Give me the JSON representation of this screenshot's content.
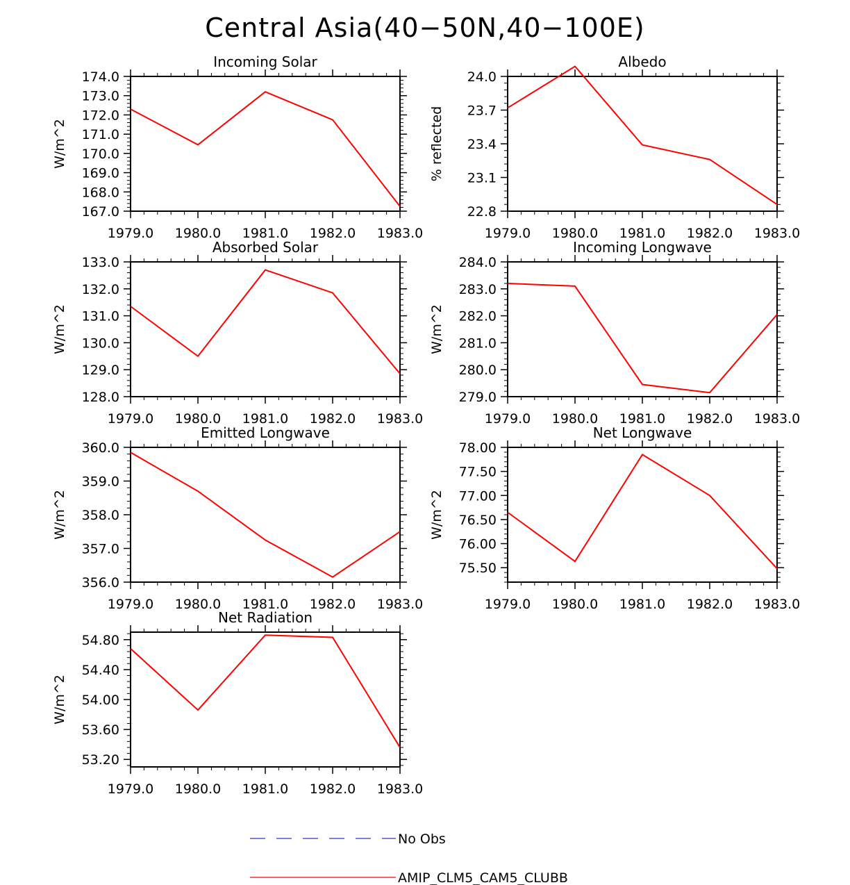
{
  "title": "Central Asia(40−50N,40−100E)",
  "chart_data": [
    {
      "type": "line",
      "title": "Incoming Solar",
      "xlabel": "",
      "ylabel": "W/m^2",
      "xlim": [
        1979,
        1983
      ],
      "ylim": [
        167,
        174
      ],
      "x_ticks": [
        "1979.0",
        "1980.0",
        "1981.0",
        "1982.0",
        "1983.0"
      ],
      "y_ticks": [
        "167.0",
        "168.0",
        "169.0",
        "170.0",
        "171.0",
        "172.0",
        "173.0",
        "174.0"
      ],
      "x": [
        1979,
        1980,
        1981,
        1982,
        1983
      ],
      "series": [
        {
          "name": "AMIP_CLM5_CAM5_CLUBB",
          "color": "#ff0000",
          "values": [
            172.3,
            170.45,
            173.2,
            171.75,
            167.25
          ]
        }
      ]
    },
    {
      "type": "line",
      "title": "Albedo",
      "xlabel": "",
      "ylabel": "% reflected",
      "xlim": [
        1979,
        1983
      ],
      "ylim": [
        22.8,
        24.0
      ],
      "x_ticks": [
        "1979.0",
        "1980.0",
        "1981.0",
        "1982.0",
        "1983.0"
      ],
      "y_ticks": [
        "22.8",
        "23.1",
        "23.4",
        "23.7",
        "24.0"
      ],
      "x": [
        1979,
        1980,
        1981,
        1982,
        1983
      ],
      "series": [
        {
          "name": "AMIP_CLM5_CAM5_CLUBB",
          "color": "#ff0000",
          "values": [
            23.72,
            24.09,
            23.39,
            23.26,
            22.86
          ]
        }
      ]
    },
    {
      "type": "line",
      "title": "Absorbed Solar",
      "xlabel": "",
      "ylabel": "W/m^2",
      "xlim": [
        1979,
        1983
      ],
      "ylim": [
        128,
        133
      ],
      "x_ticks": [
        "1979.0",
        "1980.0",
        "1981.0",
        "1982.0",
        "1983.0"
      ],
      "y_ticks": [
        "128.0",
        "129.0",
        "130.0",
        "131.0",
        "132.0",
        "133.0"
      ],
      "x": [
        1979,
        1980,
        1981,
        1982,
        1983
      ],
      "series": [
        {
          "name": "AMIP_CLM5_CAM5_CLUBB",
          "color": "#ff0000",
          "values": [
            131.35,
            129.5,
            132.7,
            131.85,
            128.85
          ]
        }
      ]
    },
    {
      "type": "line",
      "title": "Incoming Longwave",
      "xlabel": "",
      "ylabel": "W/m^2",
      "xlim": [
        1979,
        1983
      ],
      "ylim": [
        279,
        284
      ],
      "x_ticks": [
        "1979.0",
        "1980.0",
        "1981.0",
        "1982.0",
        "1983.0"
      ],
      "y_ticks": [
        "279.0",
        "280.0",
        "281.0",
        "282.0",
        "283.0",
        "284.0"
      ],
      "x": [
        1979,
        1980,
        1981,
        1982,
        1983
      ],
      "series": [
        {
          "name": "AMIP_CLM5_CAM5_CLUBB",
          "color": "#ff0000",
          "values": [
            283.2,
            283.1,
            279.45,
            279.15,
            282.05
          ]
        }
      ]
    },
    {
      "type": "line",
      "title": "Emitted Longwave",
      "xlabel": "",
      "ylabel": "W/m^2",
      "xlim": [
        1979,
        1983
      ],
      "ylim": [
        356,
        360
      ],
      "x_ticks": [
        "1979.0",
        "1980.0",
        "1981.0",
        "1982.0",
        "1983.0"
      ],
      "y_ticks": [
        "356.0",
        "357.0",
        "358.0",
        "359.0",
        "360.0"
      ],
      "x": [
        1979,
        1980,
        1981,
        1982,
        1983
      ],
      "series": [
        {
          "name": "AMIP_CLM5_CAM5_CLUBB",
          "color": "#ff0000",
          "values": [
            359.85,
            358.7,
            357.25,
            356.15,
            357.5
          ]
        }
      ]
    },
    {
      "type": "line",
      "title": "Net Longwave",
      "xlabel": "",
      "ylabel": "W/m^2",
      "xlim": [
        1979,
        1983
      ],
      "ylim": [
        75.2,
        78.0
      ],
      "x_ticks": [
        "1979.0",
        "1980.0",
        "1981.0",
        "1982.0",
        "1983.0"
      ],
      "y_ticks": [
        "75.50",
        "76.00",
        "76.50",
        "77.00",
        "77.50",
        "78.00"
      ],
      "x": [
        1979,
        1980,
        1981,
        1982,
        1983
      ],
      "series": [
        {
          "name": "AMIP_CLM5_CAM5_CLUBB",
          "color": "#ff0000",
          "values": [
            76.65,
            75.63,
            77.85,
            77.0,
            75.48
          ]
        }
      ]
    },
    {
      "type": "line",
      "title": "Net Radiation",
      "xlabel": "",
      "ylabel": "W/m^2",
      "xlim": [
        1979,
        1983
      ],
      "ylim": [
        53.1,
        54.9
      ],
      "x_ticks": [
        "1979.0",
        "1980.0",
        "1981.0",
        "1982.0",
        "1983.0"
      ],
      "y_ticks": [
        "53.20",
        "53.60",
        "54.00",
        "54.40",
        "54.80"
      ],
      "x": [
        1979,
        1980,
        1981,
        1982,
        1983
      ],
      "series": [
        {
          "name": "AMIP_CLM5_CAM5_CLUBB",
          "color": "#ff0000",
          "values": [
            54.68,
            53.86,
            54.86,
            54.83,
            53.36
          ]
        }
      ]
    }
  ],
  "legend": [
    {
      "label": "No Obs",
      "color": "#3333cc",
      "style": "dashed"
    },
    {
      "label": "AMIP_CLM5_CAM5_CLUBB",
      "color": "#ff0000",
      "style": "solid"
    }
  ]
}
